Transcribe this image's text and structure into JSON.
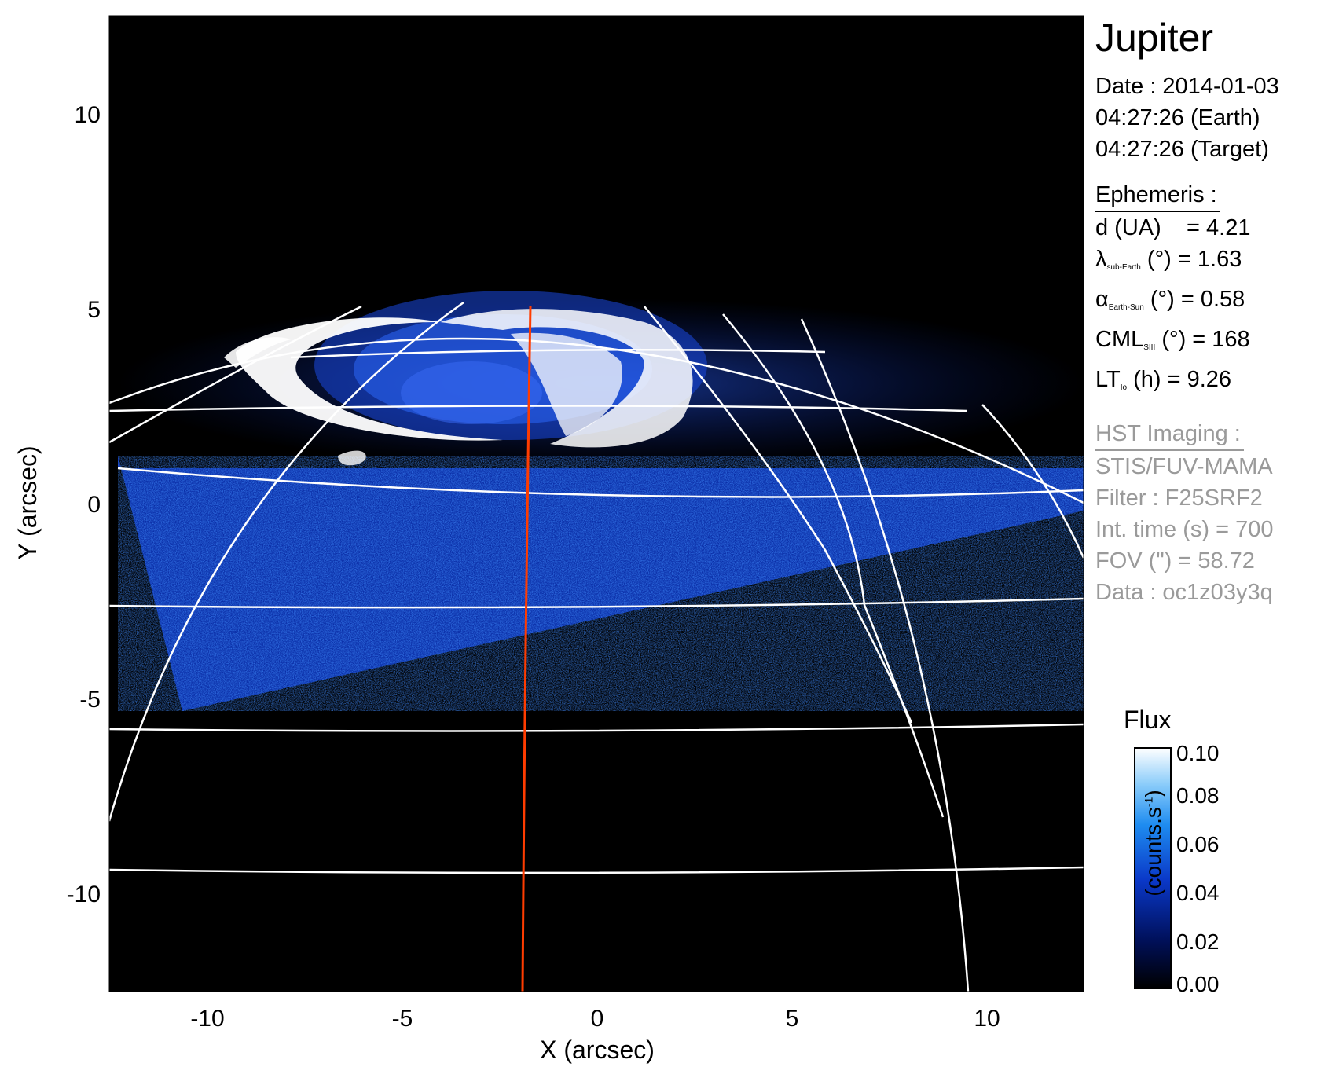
{
  "panel": {
    "target": "Jupiter",
    "date_line": "Date : 2014-01-03",
    "time_earth": "04:27:26 (Earth)",
    "time_target": "04:27:26 (Target)",
    "ephemeris_header": "Ephemeris :",
    "ephemeris": {
      "distance_label": "d (UA)",
      "distance_value": "= 4.21",
      "lat_symbol": "λ",
      "lat_sub": "sub-Earth",
      "lat_rest": "(°) = 1.63",
      "phase_symbol": "α",
      "phase_sub": "Earth-Sun",
      "phase_rest": "(°) = 0.58",
      "cml_main": "CML",
      "cml_sub": "SIII",
      "cml_rest": "(°) = 168",
      "lt_main": "LT",
      "lt_sub": "Io",
      "lt_rest": "(h) = 9.26"
    },
    "imaging_header": "HST Imaging :",
    "instrument": "STIS/FUV-MAMA",
    "filter": "Filter : F25SRF2",
    "int_time": "Int. time (s) = 700",
    "fov": "FOV (\") = 58.72",
    "data_id": "Data : oc1z03y3q"
  },
  "axes": {
    "xlabel": "X (arcsec)",
    "ylabel": "Y (arcsec)",
    "xticks": [
      "-10",
      "-5",
      "0",
      "5",
      "10"
    ],
    "yticks": [
      "10",
      "5",
      "0",
      "-5",
      "-10"
    ]
  },
  "colorbar": {
    "title": "Flux",
    "unit_main": "(counts.s",
    "unit_sup": "-1",
    "unit_end": ")",
    "ticks": [
      "0.10",
      "0.08",
      "0.06",
      "0.04",
      "0.02",
      "0.00"
    ],
    "colors": [
      "#000000",
      "#00105a",
      "#0a38c8",
      "#1e8cf0",
      "#8ccdfa",
      "#ffffff"
    ]
  },
  "colors": {
    "background": "#000000",
    "grid": "#ffffff",
    "meridian": "#ff3c00",
    "aurora_dim": "#1030c0",
    "aurora_bright": "#ffffff"
  }
}
